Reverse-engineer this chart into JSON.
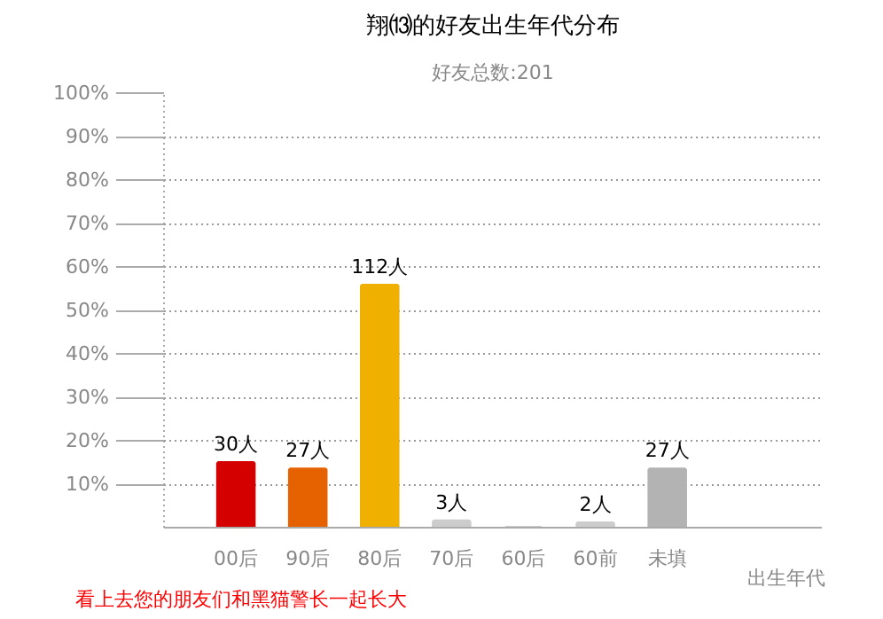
{
  "chart_data": {
    "type": "bar",
    "title": "翔⒀的好友出生年代分布",
    "subtitle": "好友总数:201",
    "xlabel": "出生年代",
    "categories": [
      "00后",
      "90后",
      "80后",
      "70后",
      "60后",
      "60前",
      "未填"
    ],
    "values": [
      14.9,
      13.4,
      55.7,
      1.5,
      0,
      1.0,
      13.4
    ],
    "colors": [
      "#d40000",
      "#e66100",
      "#f0b000",
      "#cccccc",
      "#cccccc",
      "#cccccc",
      "#b3b3b3"
    ],
    "ylim": [
      0,
      100
    ],
    "yticks": [
      {
        "value": 10,
        "label": "10%"
      },
      {
        "value": 20,
        "label": "20%"
      },
      {
        "value": 30,
        "label": "30%"
      },
      {
        "value": 40,
        "label": "40%"
      },
      {
        "value": 50,
        "label": "50%"
      },
      {
        "value": 60,
        "label": "60%"
      },
      {
        "value": 70,
        "label": "70%"
      },
      {
        "value": 80,
        "label": "80%"
      },
      {
        "value": 90,
        "label": "90%"
      },
      {
        "value": 100,
        "label": "100%"
      }
    ],
    "grid": "y",
    "annotations": [
      {
        "text": "30人",
        "x": "00后",
        "y": 14.9
      },
      {
        "text": "27人",
        "x": "90后",
        "y": 13.4
      },
      {
        "text": "112人",
        "x": "80后",
        "y": 55.7
      },
      {
        "text": "3人",
        "x": "70后",
        "y": 1.5
      },
      {
        "text": "2人",
        "x": "60前",
        "y": 1.0
      },
      {
        "text": "27人",
        "x": "未填",
        "y": 13.4
      },
      "看上去您的朋友们和黑猫警长一起长大"
    ]
  }
}
